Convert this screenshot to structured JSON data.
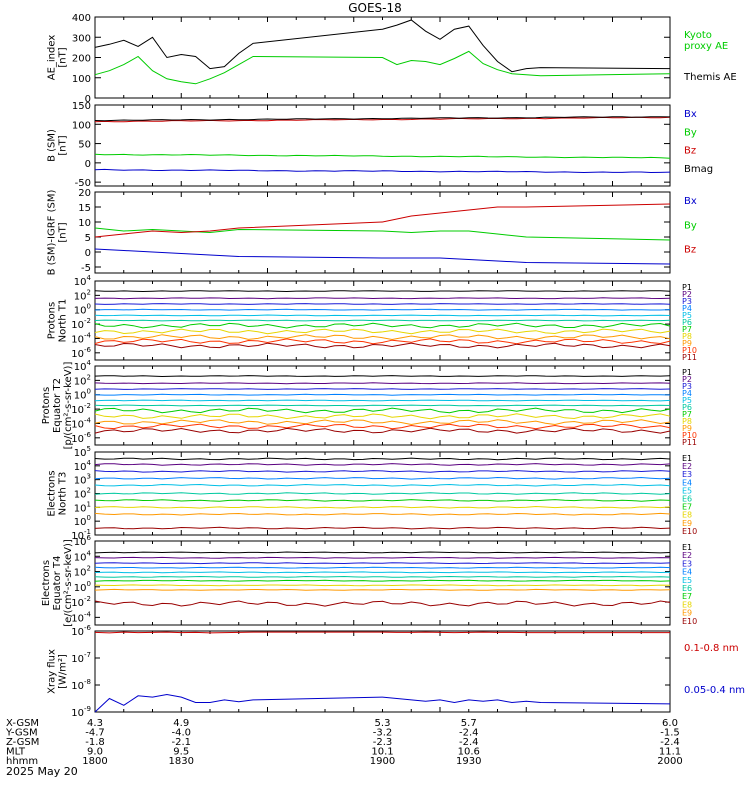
{
  "title": "GOES-18",
  "footer": {
    "rows": [
      {
        "label": "X-GSM",
        "values": [
          "4.3",
          "4.9",
          "5.3",
          "5.7",
          "6.0"
        ]
      },
      {
        "label": "Y-GSM",
        "values": [
          "-4.7",
          "-4.0",
          "-3.2",
          "-2.4",
          "-1.5"
        ]
      },
      {
        "label": "Z-GSM",
        "values": [
          "-1.8",
          "-2.1",
          "-2.3",
          "-2.4",
          "-2.4"
        ]
      },
      {
        "label": "MLT",
        "values": [
          "9.0",
          "9.5",
          "10.1",
          "10.6",
          "11.1"
        ]
      },
      {
        "label": "hhmm",
        "values": [
          "1800",
          "1830",
          "1900",
          "1930",
          "2000"
        ]
      }
    ],
    "date": "2025 May 20"
  },
  "chart_data": [
    {
      "type": "line",
      "ylabel": [
        "AE_index",
        "[nT]"
      ],
      "ylim": [
        0,
        400
      ],
      "yticks": [
        "0",
        "100",
        "200",
        "300",
        "400"
      ],
      "x": [
        1800,
        1805,
        1810,
        1815,
        1820,
        1825,
        1830,
        1835,
        1840,
        1845,
        1850,
        1855,
        1900,
        1905,
        1910,
        1915,
        1920,
        1925,
        1930,
        1935,
        1940,
        1945,
        1950,
        1955,
        2000
      ],
      "series": [
        {
          "name": "Kyoto proxy AE",
          "color": "#00cc00",
          "values": [
            115,
            135,
            165,
            205,
            135,
            95,
            80,
            70,
            95,
            125,
            165,
            205,
            200,
            165,
            185,
            180,
            165,
            195,
            230,
            170,
            140,
            120,
            115,
            110,
            120
          ]
        },
        {
          "name": "Themis AE",
          "color": "#000000",
          "values": [
            250,
            265,
            285,
            255,
            300,
            200,
            215,
            205,
            145,
            155,
            220,
            270,
            340,
            360,
            385,
            330,
            290,
            340,
            355,
            260,
            180,
            130,
            145,
            150,
            145
          ]
        }
      ],
      "legend": [
        {
          "text": "Kyoto",
          "color": "#00cc00"
        },
        {
          "text": "proxy AE",
          "color": "#00cc00"
        },
        {
          "text": "Themis AE",
          "color": "#000000"
        }
      ]
    },
    {
      "type": "line",
      "ylabel": [
        "B (SM)",
        "[nT]"
      ],
      "ylim": [
        -60,
        150
      ],
      "yticks": [
        "-50",
        "0",
        "50",
        "100",
        "150"
      ],
      "x": [
        1800,
        2000
      ],
      "series": [
        {
          "name": "Bx",
          "color": "#0000cc",
          "values": [
            -18,
            -25
          ]
        },
        {
          "name": "By",
          "color": "#00cc00",
          "values": [
            22,
            13
          ]
        },
        {
          "name": "Bz",
          "color": "#cc0000",
          "values": [
            107,
            118
          ]
        },
        {
          "name": "Bmag",
          "color": "#000000",
          "values": [
            110,
            120
          ]
        }
      ],
      "legend": [
        {
          "text": "Bx",
          "color": "#0000cc"
        },
        {
          "text": "By",
          "color": "#00cc00"
        },
        {
          "text": "Bz",
          "color": "#cc0000"
        },
        {
          "text": "Bmag",
          "color": "#000000"
        }
      ]
    },
    {
      "type": "line",
      "ylabel": [
        "B (SM)-IGRF (SM)",
        "[nT]"
      ],
      "ylim": [
        -7,
        20
      ],
      "yticks": [
        "-5",
        "0",
        "5",
        "10",
        "15",
        "20"
      ],
      "x": [
        1800,
        1810,
        1820,
        1830,
        1840,
        1850,
        1900,
        1910,
        1920,
        1930,
        1940,
        1950,
        2000
      ],
      "series": [
        {
          "name": "Bx",
          "color": "#0000cc",
          "values": [
            1,
            0.5,
            0,
            -0.5,
            -1,
            -1.5,
            -2,
            -2,
            -2,
            -2.5,
            -3,
            -3.5,
            -4
          ]
        },
        {
          "name": "By",
          "color": "#00cc00",
          "values": [
            8,
            7,
            7.5,
            7,
            6.5,
            7.5,
            7,
            6.5,
            7,
            7,
            6,
            5,
            4
          ]
        },
        {
          "name": "Bz",
          "color": "#cc0000",
          "values": [
            5,
            6,
            7,
            6.5,
            7,
            8,
            10,
            12,
            13,
            14,
            15,
            15,
            16
          ]
        }
      ],
      "legend": [
        {
          "text": "Bx",
          "color": "#0000cc"
        },
        {
          "text": "By",
          "color": "#00cc00"
        },
        {
          "text": "Bz",
          "color": "#cc0000"
        }
      ]
    },
    {
      "type": "line",
      "scale": "log",
      "ylabel": [
        "Protons",
        "North T1"
      ],
      "ylim_exp": [
        -7,
        4
      ],
      "ytick_exps": [
        4,
        2,
        0,
        -2,
        -4,
        -6
      ],
      "channels": [
        {
          "name": "P1",
          "color": "#000000",
          "log10": 2.6
        },
        {
          "name": "P2",
          "color": "#5a0080",
          "log10": 1.6
        },
        {
          "name": "P3",
          "color": "#1a1ad6",
          "log10": 0.8
        },
        {
          "name": "P4",
          "color": "#0080ff",
          "log10": 0.0
        },
        {
          "name": "P5",
          "color": "#00bfe6",
          "log10": -0.8
        },
        {
          "name": "P6",
          "color": "#00c9a0",
          "log10": -1.5
        },
        {
          "name": "P7",
          "color": "#00cc00",
          "log10": -2.2
        },
        {
          "name": "P8",
          "color": "#e6d600",
          "log10": -3.0
        },
        {
          "name": "P9",
          "color": "#ff9900",
          "log10": -3.8
        },
        {
          "name": "P10",
          "color": "#ff3300",
          "log10": -4.4
        },
        {
          "name": "P11",
          "color": "#990000",
          "log10": -5.0
        }
      ]
    },
    {
      "type": "line",
      "scale": "log",
      "ylabel": [
        "Protons",
        "Equator T2",
        "[p/(cm²-s-sr-keV)]"
      ],
      "ylim_exp": [
        -7,
        4
      ],
      "ytick_exps": [
        4,
        2,
        0,
        -2,
        -4,
        -6
      ],
      "channels": [
        {
          "name": "P1",
          "color": "#000000",
          "log10": 2.6
        },
        {
          "name": "P2",
          "color": "#5a0080",
          "log10": 1.6
        },
        {
          "name": "P3",
          "color": "#1a1ad6",
          "log10": 0.8
        },
        {
          "name": "P4",
          "color": "#0080ff",
          "log10": 0.0
        },
        {
          "name": "P5",
          "color": "#00bfe6",
          "log10": -0.8
        },
        {
          "name": "P6",
          "color": "#00c9a0",
          "log10": -1.5
        },
        {
          "name": "P7",
          "color": "#00cc00",
          "log10": -2.2
        },
        {
          "name": "P8",
          "color": "#e6d600",
          "log10": -3.0
        },
        {
          "name": "P9",
          "color": "#ff9900",
          "log10": -3.8
        },
        {
          "name": "P10",
          "color": "#ff3300",
          "log10": -4.4
        },
        {
          "name": "P11",
          "color": "#990000",
          "log10": -5.0
        }
      ]
    },
    {
      "type": "line",
      "scale": "log",
      "ylabel": [
        "Electrons",
        "North T3"
      ],
      "ylim_exp": [
        -1,
        5
      ],
      "ytick_exps": [
        5,
        4,
        3,
        2,
        1,
        0,
        -1
      ],
      "channels": [
        {
          "name": "E1",
          "color": "#000000",
          "log10": 4.5
        },
        {
          "name": "E2",
          "color": "#5a0080",
          "log10": 4.1
        },
        {
          "name": "E3",
          "color": "#1a1ad6",
          "log10": 3.6
        },
        {
          "name": "E4",
          "color": "#0080ff",
          "log10": 3.1
        },
        {
          "name": "E5",
          "color": "#00bfe6",
          "log10": 2.6
        },
        {
          "name": "E6",
          "color": "#00c9a0",
          "log10": 2.0
        },
        {
          "name": "E7",
          "color": "#00cc00",
          "log10": 1.5
        },
        {
          "name": "E8",
          "color": "#e6d600",
          "log10": 1.0
        },
        {
          "name": "E9",
          "color": "#ff9900",
          "log10": 0.5
        },
        {
          "name": "E10",
          "color": "#990000",
          "log10": -0.5
        }
      ]
    },
    {
      "type": "line",
      "scale": "log",
      "ylabel": [
        "Electrons",
        "Equator T4",
        "[e/(cm²-s-sr-keV)]"
      ],
      "ylim_exp": [
        -5,
        6
      ],
      "ytick_exps": [
        6,
        4,
        2,
        0,
        -2,
        -4
      ],
      "channels": [
        {
          "name": "E1",
          "color": "#000000",
          "log10": 4.5
        },
        {
          "name": "E2",
          "color": "#5a0080",
          "log10": 3.8
        },
        {
          "name": "E3",
          "color": "#1a1ad6",
          "log10": 3.1
        },
        {
          "name": "E4",
          "color": "#0080ff",
          "log10": 2.5
        },
        {
          "name": "E5",
          "color": "#00bfe6",
          "log10": 1.9
        },
        {
          "name": "E6",
          "color": "#00c9a0",
          "log10": 1.3
        },
        {
          "name": "E7",
          "color": "#00cc00",
          "log10": 0.8
        },
        {
          "name": "E8",
          "color": "#e6d600",
          "log10": 0.2
        },
        {
          "name": "E9",
          "color": "#ff9900",
          "log10": -0.4
        },
        {
          "name": "E10",
          "color": "#990000",
          "log10": -2.2
        }
      ]
    },
    {
      "type": "line",
      "scale": "log",
      "ylabel": [
        "Xray flux",
        "[W/m²]"
      ],
      "ylim_exp": [
        -9,
        -6
      ],
      "ytick_exps": [
        -6,
        -7,
        -8,
        -9
      ],
      "ytick_base": "10",
      "x": [
        1800,
        1805,
        1810,
        1815,
        1820,
        1825,
        1830,
        1835,
        1840,
        1845,
        1850,
        1855,
        1900,
        1905,
        1910,
        1915,
        1920,
        1925,
        1930,
        1935,
        1940,
        1945,
        1950,
        1955,
        2000
      ],
      "series": [
        {
          "name": "0.1-0.8 nm",
          "color": "#cc0000",
          "values_log10": [
            -6.05,
            -6.07,
            -6.04,
            -6.06,
            -6.05,
            -6.04,
            -6.06,
            -6.05,
            -6.07,
            -6.06,
            -6.05,
            -6.04,
            -6.04,
            -6.05,
            -6.05,
            -6.04,
            -6.05,
            -6.06,
            -6.05,
            -6.04,
            -6.05,
            -6.05,
            -6.06,
            -6.06,
            -6.06
          ]
        },
        {
          "name": "0.05-0.4 nm",
          "color": "#0000cc",
          "values_log10": [
            -9.0,
            -8.5,
            -8.75,
            -8.4,
            -8.45,
            -8.35,
            -8.45,
            -8.65,
            -8.65,
            -8.55,
            -8.62,
            -8.55,
            -8.45,
            -8.5,
            -8.55,
            -8.6,
            -8.55,
            -8.65,
            -8.55,
            -8.6,
            -8.55,
            -8.65,
            -8.6,
            -8.65,
            -8.7
          ]
        }
      ],
      "legend": [
        {
          "text": "0.1-0.8 nm",
          "color": "#cc0000"
        },
        {
          "text": "0.05-0.4 nm",
          "color": "#0000cc"
        }
      ]
    }
  ]
}
